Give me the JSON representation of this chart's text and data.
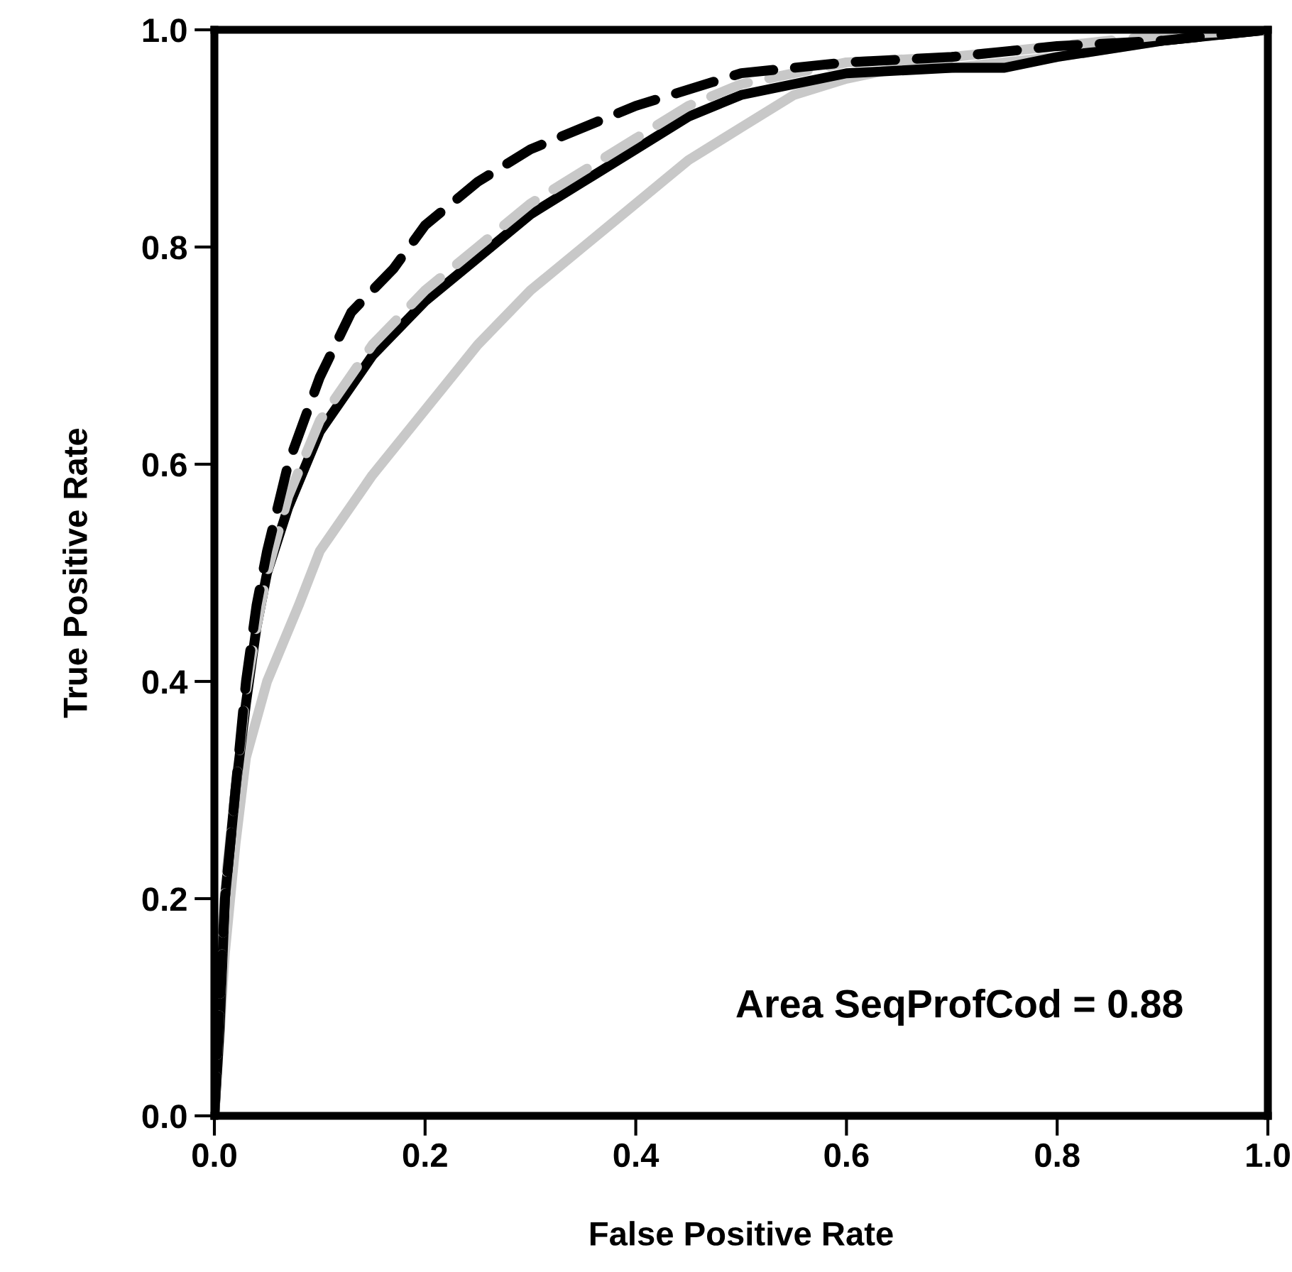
{
  "chart_data": {
    "type": "line",
    "xlabel": "False Positive Rate",
    "ylabel": "True Positive Rate",
    "xlim": [
      0,
      1
    ],
    "ylim": [
      0,
      1
    ],
    "xticks": [
      {
        "value": 0,
        "label": "0.0"
      },
      {
        "value": 0.2,
        "label": "0.2"
      },
      {
        "value": 0.4,
        "label": "0.4"
      },
      {
        "value": 0.6,
        "label": "0.6"
      },
      {
        "value": 0.8,
        "label": "0.8"
      },
      {
        "value": 1,
        "label": "1.0"
      }
    ],
    "yticks": [
      {
        "value": 0,
        "label": "0.0"
      },
      {
        "value": 0.2,
        "label": "0.2"
      },
      {
        "value": 0.4,
        "label": "0.4"
      },
      {
        "value": 0.6,
        "label": "0.6"
      },
      {
        "value": 0.8,
        "label": "0.8"
      },
      {
        "value": 1,
        "label": "1.0"
      }
    ],
    "grid": false,
    "marker": "none",
    "annotations": [
      "Area SeqProfCod = 0.88"
    ],
    "series": [
      {
        "color": "#c8c8c8",
        "line_style": "solid",
        "x": [
          0,
          0.01,
          0.02,
          0.03,
          0.05,
          0.08,
          0.1,
          0.15,
          0.2,
          0.25,
          0.3,
          0.35,
          0.4,
          0.45,
          0.5,
          0.55,
          0.6,
          0.65,
          0.7,
          0.8,
          0.9,
          1
        ],
        "values": [
          0,
          0.15,
          0.25,
          0.33,
          0.4,
          0.47,
          0.52,
          0.59,
          0.65,
          0.71,
          0.76,
          0.8,
          0.84,
          0.88,
          0.91,
          0.94,
          0.955,
          0.965,
          0.965,
          0.975,
          0.99,
          1
        ]
      },
      {
        "color": "#000000",
        "line_style": "solid",
        "x": [
          0,
          0.005,
          0.01,
          0.02,
          0.03,
          0.04,
          0.05,
          0.07,
          0.1,
          0.15,
          0.2,
          0.25,
          0.3,
          0.35,
          0.4,
          0.45,
          0.5,
          0.6,
          0.7,
          0.75,
          0.8,
          0.9,
          1
        ],
        "values": [
          0,
          0.08,
          0.2,
          0.3,
          0.38,
          0.45,
          0.5,
          0.56,
          0.63,
          0.7,
          0.75,
          0.79,
          0.83,
          0.86,
          0.89,
          0.92,
          0.94,
          0.96,
          0.965,
          0.965,
          0.975,
          0.99,
          1
        ]
      },
      {
        "color": "#c8c8c8",
        "line_style": "dashed",
        "x": [
          0,
          0.005,
          0.01,
          0.02,
          0.03,
          0.04,
          0.05,
          0.07,
          0.1,
          0.15,
          0.2,
          0.25,
          0.3,
          0.35,
          0.4,
          0.45,
          0.5,
          0.6,
          0.7,
          0.8,
          0.9,
          1
        ],
        "values": [
          0,
          0.1,
          0.21,
          0.3,
          0.39,
          0.45,
          0.5,
          0.57,
          0.64,
          0.71,
          0.76,
          0.8,
          0.84,
          0.87,
          0.9,
          0.93,
          0.95,
          0.97,
          0.975,
          0.985,
          0.995,
          1
        ]
      },
      {
        "color": "#000000",
        "line_style": "dashed",
        "x": [
          0,
          0.005,
          0.01,
          0.02,
          0.03,
          0.04,
          0.05,
          0.07,
          0.1,
          0.13,
          0.17,
          0.2,
          0.25,
          0.3,
          0.4,
          0.5,
          0.6,
          0.7,
          0.8,
          0.9,
          1
        ],
        "values": [
          0,
          0.1,
          0.2,
          0.3,
          0.4,
          0.47,
          0.52,
          0.6,
          0.68,
          0.74,
          0.78,
          0.82,
          0.86,
          0.89,
          0.93,
          0.96,
          0.97,
          0.975,
          0.985,
          0.99,
          1
        ]
      }
    ]
  }
}
